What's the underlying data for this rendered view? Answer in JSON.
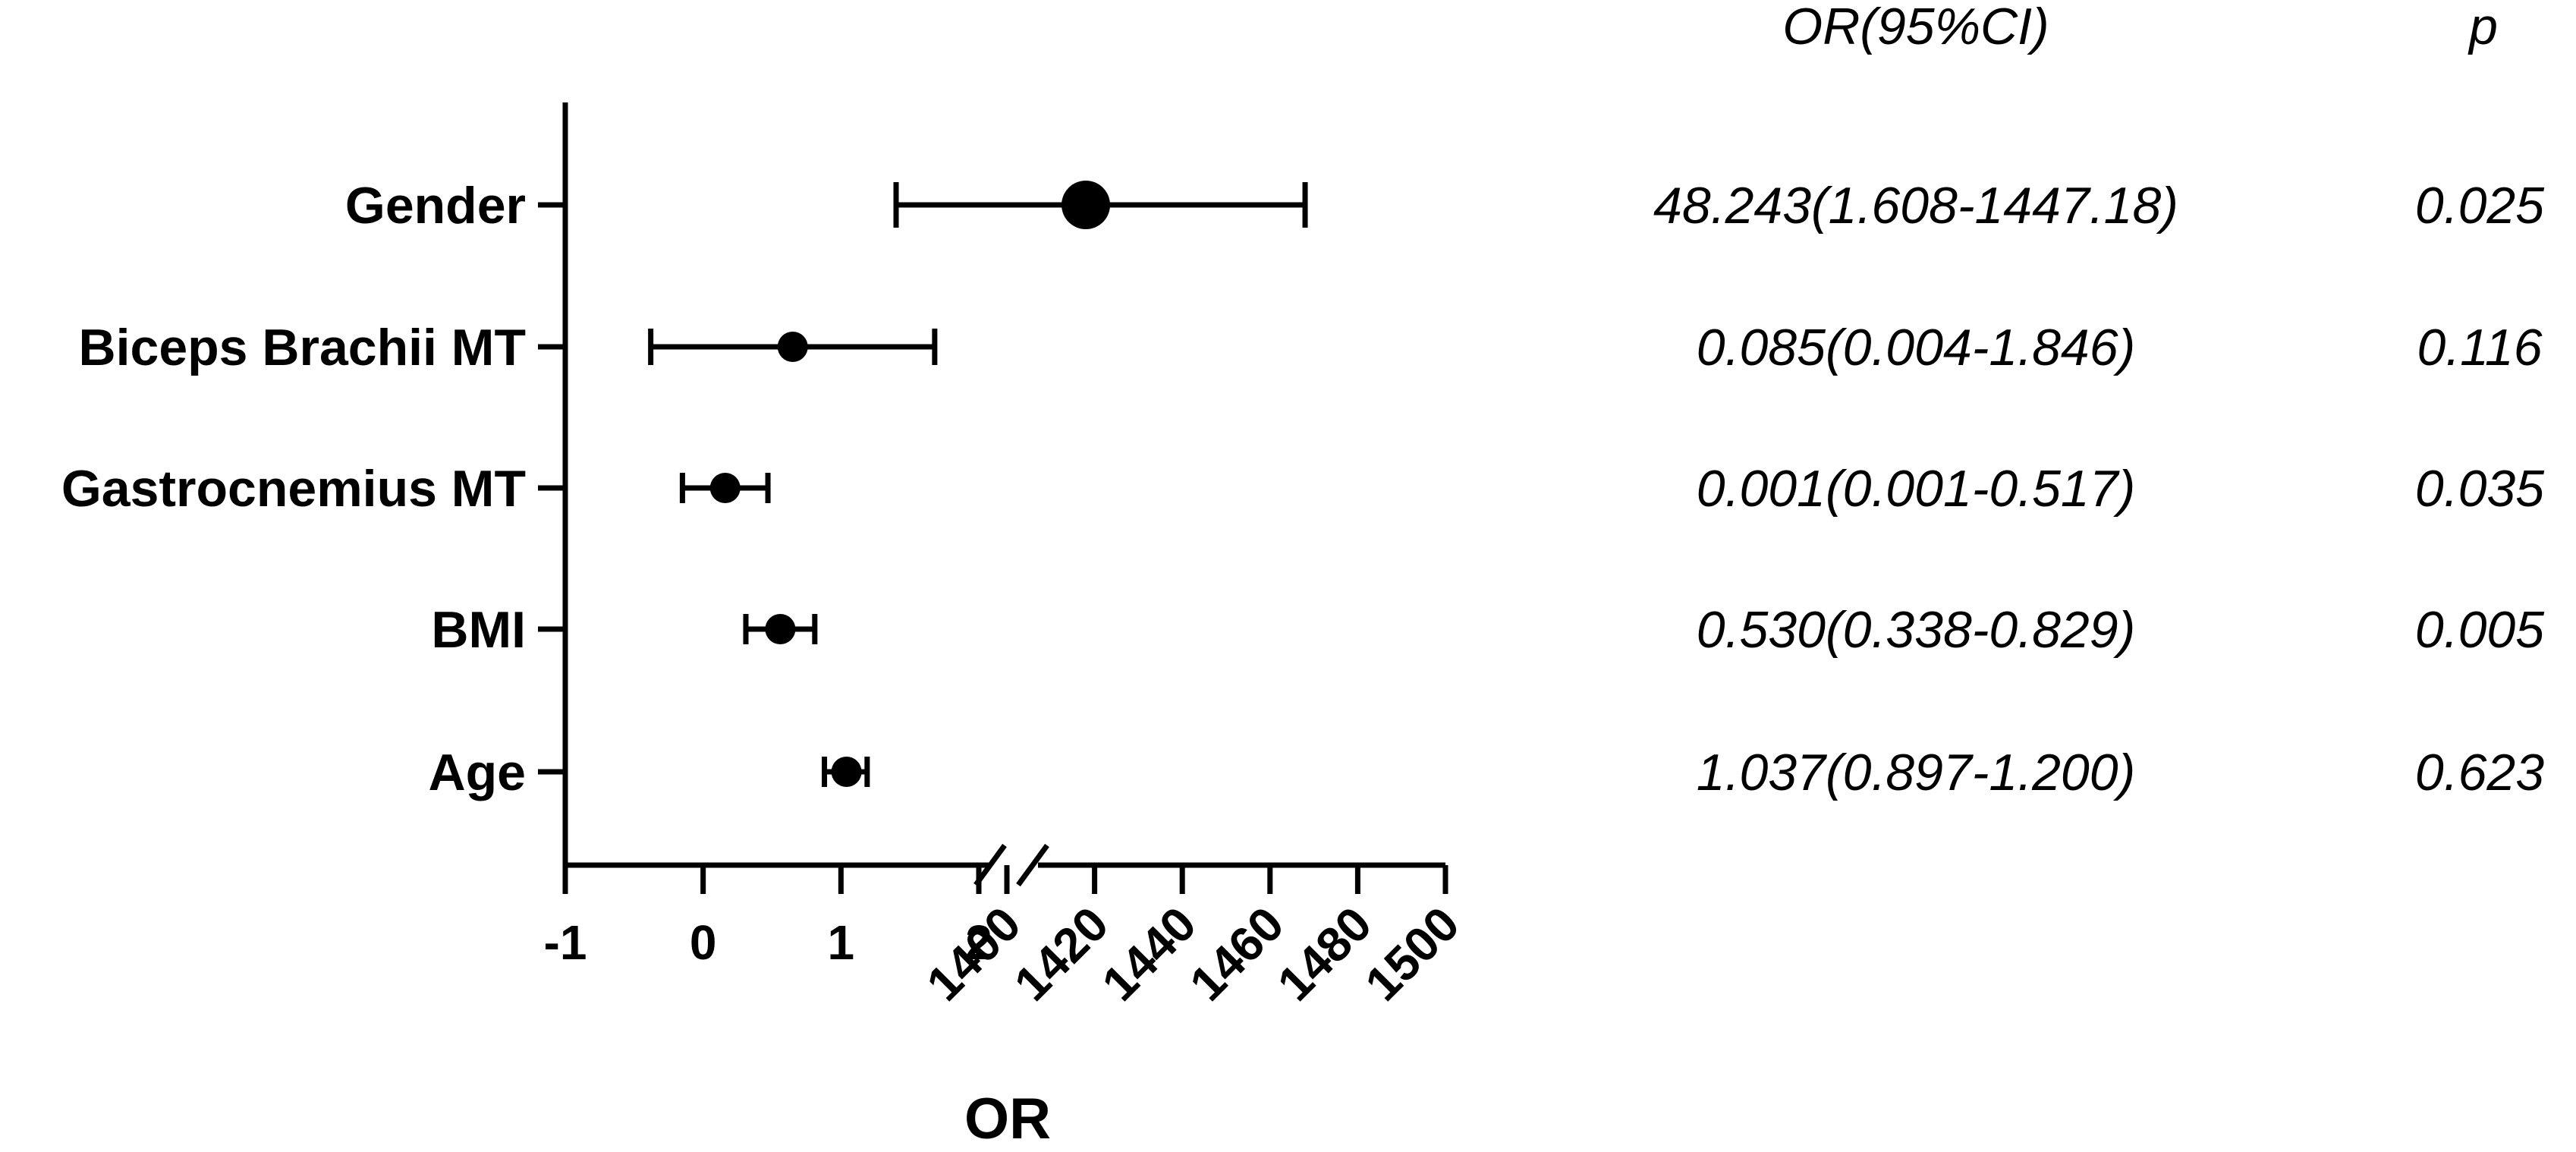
{
  "chart_data": {
    "type": "scatter",
    "subtype": "forest-plot",
    "title": "",
    "xlabel": "OR",
    "ylabel": "",
    "x_axis_break": true,
    "x_segments": [
      {
        "range": [
          -1,
          2
        ],
        "ticks": [
          -1,
          0,
          1,
          2
        ]
      },
      {
        "range": [
          1400,
          1500
        ],
        "ticks": [
          1400,
          1420,
          1440,
          1460,
          1480,
          1500
        ]
      }
    ],
    "x_tick_labels": [
      "-1",
      "0",
      "1",
      "2",
      "1400",
      "1420",
      "1440",
      "1460",
      "1480",
      "1500"
    ],
    "grid": false,
    "legend": "none",
    "table_headers": {
      "ci": "OR(95%CI)",
      "p": "p"
    },
    "rows": [
      {
        "name": "Gender",
        "or_text": "48.243(1.608-1447.18)",
        "p": "0.025",
        "plot_point": 1418,
        "plot_low": 1.4,
        "plot_high": 1468,
        "marker": "large"
      },
      {
        "name": "Biceps Brachii MT",
        "or_text": "0.085(0.004-1.846)",
        "p": "0.116",
        "plot_point": 0.65,
        "plot_low": -0.38,
        "plot_high": 1.68,
        "marker": "medium"
      },
      {
        "name": "Gastrocnemius MT",
        "or_text": "0.001(0.001-0.517)",
        "p": "0.035",
        "plot_point": 0.16,
        "plot_low": -0.15,
        "plot_high": 0.47,
        "marker": "medium"
      },
      {
        "name": "BMI",
        "or_text": "0.530(0.338-0.829)",
        "p": "0.005",
        "plot_point": 0.56,
        "plot_low": 0.31,
        "plot_high": 0.81,
        "marker": "medium"
      },
      {
        "name": "Age",
        "or_text": "1.037(0.897-1.200)",
        "p": "0.623",
        "plot_point": 1.04,
        "plot_low": 0.88,
        "plot_high": 1.19,
        "marker": "medium"
      }
    ]
  }
}
